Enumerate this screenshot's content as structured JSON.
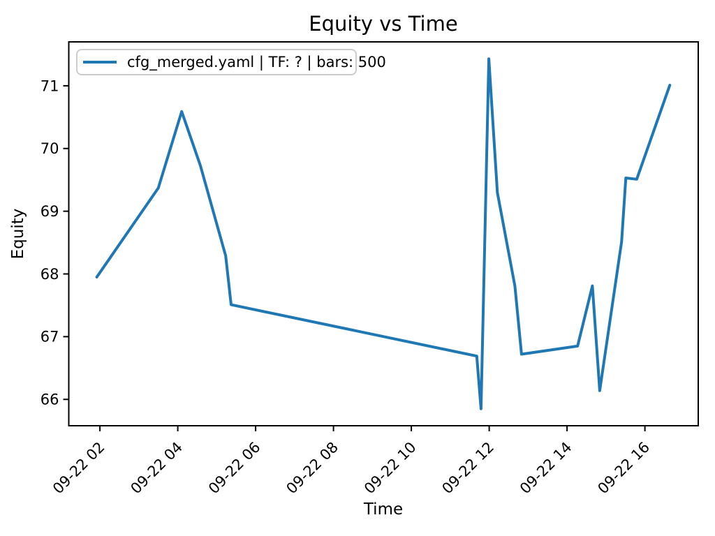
{
  "figure": {
    "background": "#ffffff",
    "spine_color": "#000000",
    "legend_border_color": "#cccccc"
  },
  "chart_data": {
    "type": "line",
    "title": "Equity vs Time",
    "xlabel": "Time",
    "ylabel": "Equity",
    "grid": false,
    "legend_position": "upper left",
    "xlim_hours": [
      1.2,
      17.37
    ],
    "ylim": [
      65.58,
      71.7
    ],
    "x_ticks": [
      {
        "label": "09-22 02",
        "hours": 2
      },
      {
        "label": "09-22 04",
        "hours": 4
      },
      {
        "label": "09-22 06",
        "hours": 6
      },
      {
        "label": "09-22 08",
        "hours": 8
      },
      {
        "label": "09-22 10",
        "hours": 10
      },
      {
        "label": "09-22 12",
        "hours": 12
      },
      {
        "label": "09-22 14",
        "hours": 14
      },
      {
        "label": "09-22 16",
        "hours": 16
      }
    ],
    "y_ticks": [
      66,
      67,
      68,
      69,
      70,
      71
    ],
    "series": [
      {
        "name": "cfg_merged.yaml | TF: ? | bars: 500",
        "color": "#1f77b4",
        "line_width": 4,
        "points": [
          {
            "time": "09-22 01:55",
            "hours": 1.92,
            "equity": 67.95
          },
          {
            "time": "09-22 03:30",
            "hours": 3.5,
            "equity": 69.37
          },
          {
            "time": "09-22 04:06",
            "hours": 4.1,
            "equity": 70.59
          },
          {
            "time": "09-22 04:35",
            "hours": 4.58,
            "equity": 69.73
          },
          {
            "time": "09-22 05:14",
            "hours": 5.23,
            "equity": 68.29
          },
          {
            "time": "09-22 05:22",
            "hours": 5.37,
            "equity": 67.51
          },
          {
            "time": "09-22 11:41",
            "hours": 11.68,
            "equity": 66.69
          },
          {
            "time": "09-22 11:47",
            "hours": 11.79,
            "equity": 65.85
          },
          {
            "time": "09-22 11:59",
            "hours": 11.99,
            "equity": 71.43
          },
          {
            "time": "09-22 12:13",
            "hours": 12.21,
            "equity": 69.3
          },
          {
            "time": "09-22 12:40",
            "hours": 12.66,
            "equity": 67.81
          },
          {
            "time": "09-22 12:50",
            "hours": 12.83,
            "equity": 66.72
          },
          {
            "time": "09-22 14:16",
            "hours": 14.27,
            "equity": 66.85
          },
          {
            "time": "09-22 14:39",
            "hours": 14.65,
            "equity": 67.81
          },
          {
            "time": "09-22 14:50",
            "hours": 14.84,
            "equity": 66.14
          },
          {
            "time": "09-22 15:24",
            "hours": 15.4,
            "equity": 68.51
          },
          {
            "time": "09-22 15:31",
            "hours": 15.51,
            "equity": 69.53
          },
          {
            "time": "09-22 15:47",
            "hours": 15.79,
            "equity": 69.51
          },
          {
            "time": "09-22 16:38",
            "hours": 16.64,
            "equity": 71.01
          }
        ]
      }
    ]
  }
}
